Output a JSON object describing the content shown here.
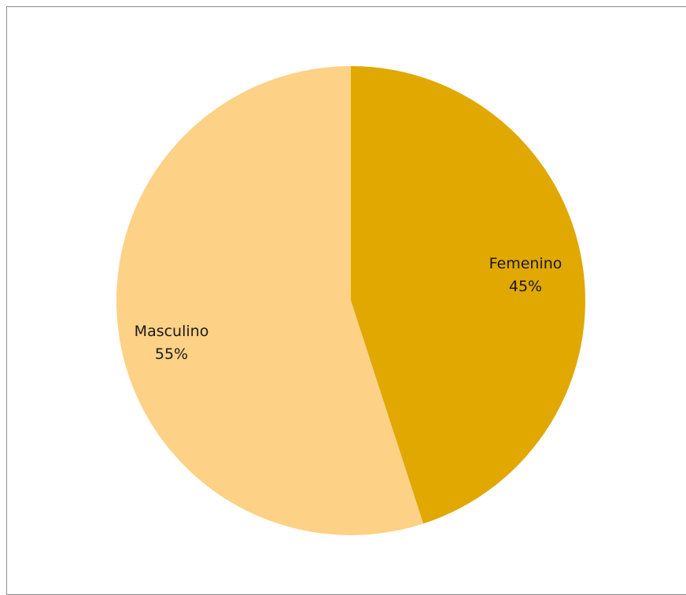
{
  "chart_data": {
    "type": "pie",
    "title": "",
    "start_angle_deg": 0,
    "direction": "clockwise",
    "slices": [
      {
        "label": "Femenino",
        "value": 45,
        "percent_label": "45%",
        "color": "#E0A800"
      },
      {
        "label": "Masculino",
        "value": 55,
        "percent_label": "55%",
        "color": "#FDD186"
      }
    ]
  }
}
